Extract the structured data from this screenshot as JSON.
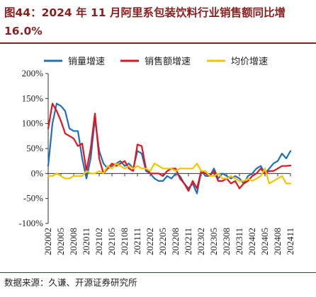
{
  "title": "图44：2024 年 11 月阿里系包装饮料行业销售额同比增16.0%",
  "source": "数据来源：久谦、开源证券研究所",
  "colors": {
    "title": "#8b1e1e",
    "series": [
      "#1f6fbf",
      "#e3141c",
      "#f5c400"
    ]
  },
  "chart_data": {
    "type": "line",
    "title": "",
    "xlabel": "",
    "ylabel": "",
    "ylim": [
      -100,
      200
    ],
    "yticks": [
      -100,
      -50,
      0,
      50,
      100,
      150,
      200
    ],
    "ytick_format": "percent",
    "grid": false,
    "legend": "top",
    "x": [
      "202002",
      "202003",
      "202004",
      "202005",
      "202006",
      "202007",
      "202008",
      "202009",
      "202010",
      "202011",
      "202012",
      "202101",
      "202102",
      "202103",
      "202104",
      "202105",
      "202106",
      "202107",
      "202108",
      "202109",
      "202110",
      "202111",
      "202112",
      "202201",
      "202202",
      "202203",
      "202204",
      "202205",
      "202206",
      "202207",
      "202208",
      "202209",
      "202210",
      "202211",
      "202212",
      "202301",
      "202302",
      "202303",
      "202304",
      "202305",
      "202306",
      "202307",
      "202308",
      "202309",
      "202310",
      "202311",
      "202312",
      "202401",
      "202402",
      "202403",
      "202404",
      "202405",
      "202406",
      "202407",
      "202408",
      "202409",
      "202410",
      "202411"
    ],
    "xtick_labels": [
      "202002",
      "202005",
      "202008",
      "202011",
      "202102",
      "202105",
      "202108",
      "202111",
      "202202",
      "202205",
      "202208",
      "202211",
      "202302",
      "202305",
      "202308",
      "202311",
      "202402",
      "202405",
      "202408",
      "202411"
    ],
    "series": [
      {
        "name": "销量增速",
        "color": "#1f6fbf",
        "values": [
          15,
          100,
          140,
          135,
          125,
          90,
          85,
          85,
          30,
          -10,
          30,
          110,
          45,
          20,
          10,
          15,
          20,
          25,
          15,
          20,
          10,
          45,
          40,
          5,
          0,
          -10,
          -15,
          -15,
          -5,
          -10,
          0,
          -5,
          -20,
          -30,
          -20,
          -40,
          5,
          -5,
          -5,
          10,
          -10,
          0,
          -5,
          -10,
          -5,
          -10,
          -20,
          -5,
          0,
          10,
          15,
          0,
          10,
          20,
          25,
          40,
          30,
          45
        ]
      },
      {
        "name": "销售额增速",
        "color": "#e3141c",
        "values": [
          90,
          140,
          125,
          105,
          80,
          75,
          70,
          55,
          60,
          5,
          50,
          120,
          30,
          0,
          10,
          20,
          15,
          20,
          25,
          10,
          5,
          58,
          55,
          10,
          0,
          0,
          0,
          -5,
          5,
          10,
          10,
          -10,
          -20,
          -35,
          -15,
          -30,
          5,
          0,
          -5,
          5,
          -15,
          -15,
          -10,
          -20,
          -15,
          -30,
          -20,
          -15,
          -5,
          0,
          10,
          0,
          5,
          5,
          10,
          15,
          15,
          16
        ]
      },
      {
        "name": "均价增速",
        "color": "#f5c400",
        "values": [
          -5,
          -5,
          0,
          -5,
          -10,
          -10,
          -5,
          -5,
          -5,
          5,
          0,
          0,
          5,
          0,
          15,
          10,
          20,
          15,
          10,
          15,
          10,
          15,
          10,
          10,
          5,
          20,
          15,
          10,
          10,
          10,
          5,
          10,
          10,
          10,
          10,
          20,
          5,
          5,
          -5,
          -5,
          0,
          -10,
          -10,
          -5,
          -10,
          -15,
          -15,
          -10,
          -15,
          -10,
          -5,
          10,
          -20,
          -15,
          -10,
          -5,
          -20,
          -20
        ]
      }
    ]
  }
}
